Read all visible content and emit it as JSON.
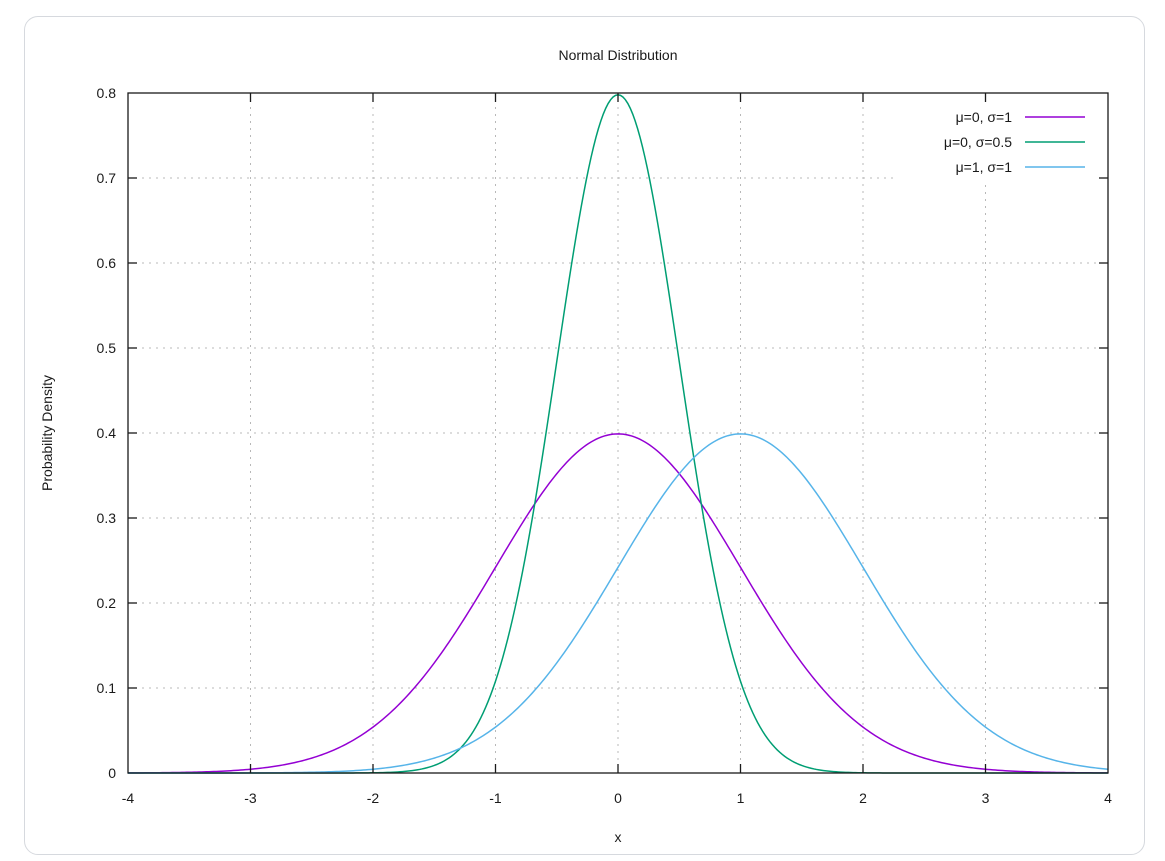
{
  "chart_data": {
    "type": "line",
    "title": "Normal Distribution",
    "xlabel": "x",
    "ylabel": "Probability Density",
    "xlim": [
      -4,
      4
    ],
    "ylim": [
      0,
      0.8
    ],
    "xticks": [
      "-4",
      "-3",
      "-2",
      "-1",
      "0",
      "1",
      "2",
      "3",
      "4"
    ],
    "yticks": [
      "0",
      "0.1",
      "0.2",
      "0.3",
      "0.4",
      "0.5",
      "0.6",
      "0.7",
      "0.8"
    ],
    "grid": true,
    "legend_position": "top-right",
    "series": [
      {
        "name": "μ=0, σ=1",
        "mu": 0,
        "sigma": 1,
        "color": "#9400d3",
        "x": [
          -4,
          -3,
          -2,
          -1,
          0,
          1,
          2,
          3,
          4
        ],
        "values": [
          0.0001,
          0.0044,
          0.054,
          0.242,
          0.399,
          0.242,
          0.054,
          0.0044,
          0.0001
        ]
      },
      {
        "name": "μ=0, σ=0.5",
        "mu": 0,
        "sigma": 0.5,
        "color": "#009e73",
        "x": [
          -4,
          -3,
          -2,
          -1,
          0,
          1,
          2,
          3,
          4
        ],
        "values": [
          0.0,
          0.0,
          0.0003,
          0.108,
          0.798,
          0.108,
          0.0003,
          0.0,
          0.0
        ]
      },
      {
        "name": "μ=1, σ=1",
        "mu": 1,
        "sigma": 1,
        "color": "#56b4e9",
        "x": [
          -4,
          -3,
          -2,
          -1,
          0,
          1,
          2,
          3,
          4
        ],
        "values": [
          0.0,
          0.0001,
          0.0044,
          0.054,
          0.242,
          0.399,
          0.242,
          0.054,
          0.0044
        ]
      }
    ]
  }
}
